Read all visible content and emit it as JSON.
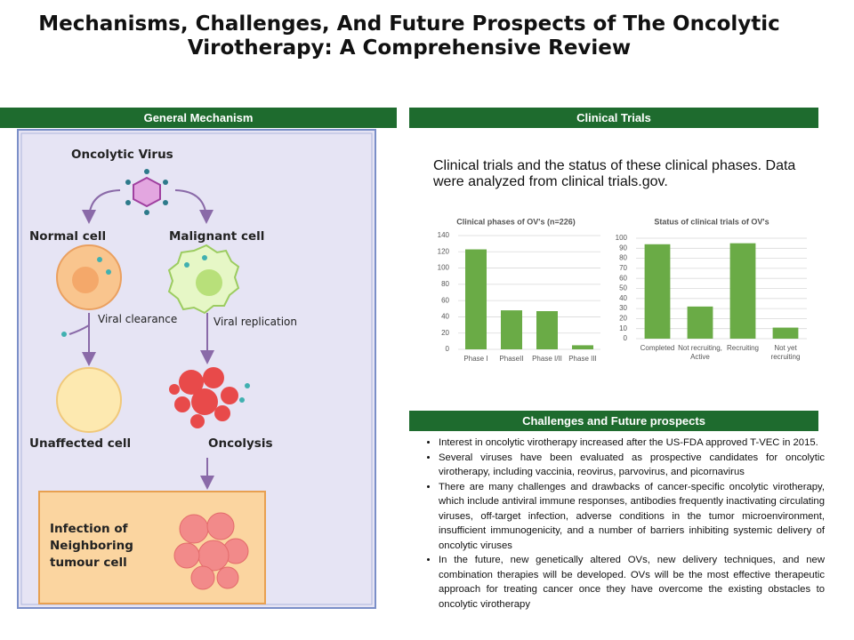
{
  "title": "Mechanisms, Challenges, And Future Prospects of The Oncolytic Virotherapy: A Comprehensive Review",
  "general_mechanism": {
    "heading": "General Mechanism",
    "labels": {
      "virus": "Oncolytic Virus",
      "normal": "Normal cell",
      "malignant": "Malignant cell",
      "clearance": "Viral clearance",
      "replication": "Viral replication",
      "unaffected": "Unaffected cell",
      "oncolysis": "Oncolysis",
      "infection": "Infection of Neighboring tumour cell"
    }
  },
  "clinical_trials": {
    "heading": "Clinical Trials",
    "caption": "Clinical trials and the status of these clinical phases. Data were analyzed from clinical trials.gov."
  },
  "chart_data": [
    {
      "type": "bar",
      "title": "Clinical phases of OV's (n=226)",
      "categories": [
        "Phase I",
        "PhaseII",
        "Phase I/II",
        "Phase III"
      ],
      "values": [
        123,
        48,
        47,
        5
      ],
      "color": "#6aab46",
      "ylim": [
        0,
        140
      ],
      "yticks": [
        0,
        20,
        40,
        60,
        80,
        100,
        120,
        140
      ],
      "grid": true
    },
    {
      "type": "bar",
      "title": "Status of clinical trials of OV's",
      "categories": [
        "Completed",
        "Not recruiting, Active",
        "Recruiting",
        "Not yet recruiting"
      ],
      "values": [
        94,
        32,
        95,
        11
      ],
      "color": "#6aab46",
      "ylim": [
        0,
        100
      ],
      "yticks": [
        0,
        10,
        20,
        30,
        40,
        50,
        60,
        70,
        80,
        90,
        100
      ],
      "grid": true
    }
  ],
  "challenges": {
    "heading": "Challenges and Future prospects",
    "bullets": [
      "Interest in oncolytic virotherapy increased after the US-FDA approved T-VEC in 2015.",
      "Several viruses have been evaluated as prospective candidates for oncolytic virotherapy, including vaccinia, reovirus, parvovirus, and picornavirus",
      "There are many challenges and drawbacks of cancer-specific oncolytic virotherapy, which include antiviral immune responses, antibodies frequently inactivating circulating viruses, off-target infection, adverse conditions in the tumor microenvironment, insufficient immunogenicity, and a number of barriers inhibiting systemic delivery of oncolytic viruses",
      "In the future, new genetically altered OVs, new delivery techniques, and new combination therapies will be developed. OVs will be the most effective therapeutic approach for treating cancer once they have overcome the existing obstacles to oncolytic virotherapy"
    ]
  }
}
